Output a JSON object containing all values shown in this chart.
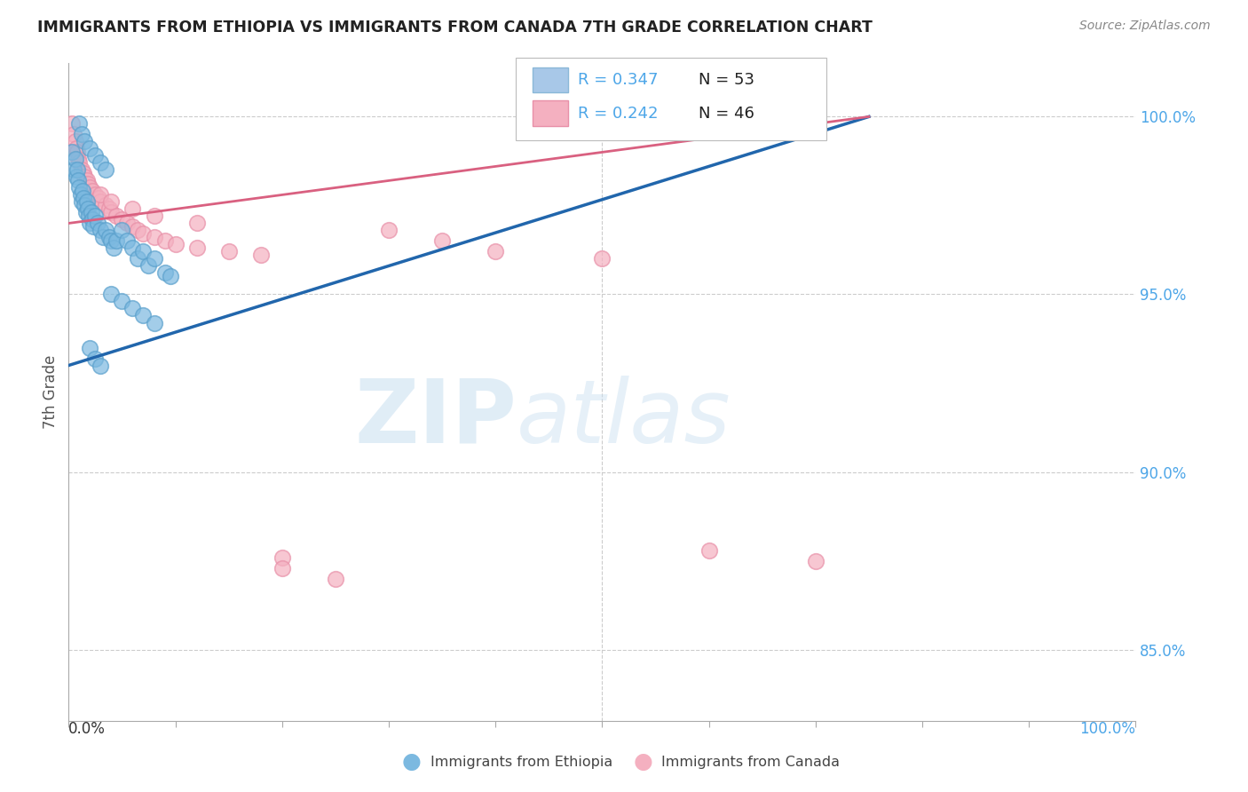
{
  "title": "IMMIGRANTS FROM ETHIOPIA VS IMMIGRANTS FROM CANADA 7TH GRADE CORRELATION CHART",
  "source": "Source: ZipAtlas.com",
  "ylabel": "7th Grade",
  "y_ticks": [
    0.85,
    0.9,
    0.95,
    1.0
  ],
  "y_tick_labels": [
    "85.0%",
    "90.0%",
    "95.0%",
    "100.0%"
  ],
  "x_range": [
    0.0,
    1.0
  ],
  "y_range": [
    0.83,
    1.015
  ],
  "watermark_zip": "ZIP",
  "watermark_atlas": "atlas",
  "series1_name": "Immigrants from Ethiopia",
  "series1_color": "#7cb9e0",
  "series1_edge_color": "#5aa0cc",
  "series1_line_color": "#2166ac",
  "series2_name": "Immigrants from Canada",
  "series2_color": "#f4b0c0",
  "series2_edge_color": "#e890a8",
  "series2_line_color": "#d96080",
  "scatter1_x": [
    0.003,
    0.005,
    0.006,
    0.007,
    0.008,
    0.009,
    0.01,
    0.011,
    0.012,
    0.013,
    0.014,
    0.015,
    0.016,
    0.017,
    0.018,
    0.019,
    0.02,
    0.021,
    0.022,
    0.023,
    0.025,
    0.027,
    0.03,
    0.032,
    0.035,
    0.038,
    0.04,
    0.042,
    0.045,
    0.05,
    0.055,
    0.06,
    0.065,
    0.07,
    0.075,
    0.08,
    0.09,
    0.095,
    0.01,
    0.012,
    0.015,
    0.02,
    0.025,
    0.03,
    0.035,
    0.04,
    0.05,
    0.06,
    0.07,
    0.08,
    0.02,
    0.025,
    0.03
  ],
  "scatter1_y": [
    0.99,
    0.985,
    0.988,
    0.983,
    0.985,
    0.982,
    0.98,
    0.978,
    0.976,
    0.979,
    0.977,
    0.975,
    0.973,
    0.976,
    0.974,
    0.972,
    0.97,
    0.973,
    0.971,
    0.969,
    0.972,
    0.97,
    0.968,
    0.966,
    0.968,
    0.966,
    0.965,
    0.963,
    0.965,
    0.968,
    0.965,
    0.963,
    0.96,
    0.962,
    0.958,
    0.96,
    0.956,
    0.955,
    0.998,
    0.995,
    0.993,
    0.991,
    0.989,
    0.987,
    0.985,
    0.95,
    0.948,
    0.946,
    0.944,
    0.942,
    0.935,
    0.932,
    0.93
  ],
  "scatter2_x": [
    0.003,
    0.005,
    0.006,
    0.007,
    0.008,
    0.009,
    0.01,
    0.012,
    0.014,
    0.015,
    0.017,
    0.018,
    0.02,
    0.022,
    0.025,
    0.028,
    0.03,
    0.035,
    0.038,
    0.04,
    0.045,
    0.05,
    0.055,
    0.06,
    0.065,
    0.07,
    0.08,
    0.09,
    0.1,
    0.12,
    0.15,
    0.18,
    0.03,
    0.04,
    0.06,
    0.08,
    0.12,
    0.2,
    0.2,
    0.25,
    0.3,
    0.35,
    0.4,
    0.5,
    0.6,
    0.7
  ],
  "scatter2_y": [
    0.998,
    0.995,
    0.993,
    0.991,
    0.99,
    0.988,
    0.987,
    0.985,
    0.984,
    0.983,
    0.982,
    0.981,
    0.98,
    0.979,
    0.978,
    0.977,
    0.976,
    0.975,
    0.974,
    0.973,
    0.972,
    0.971,
    0.97,
    0.969,
    0.968,
    0.967,
    0.966,
    0.965,
    0.964,
    0.963,
    0.962,
    0.961,
    0.978,
    0.976,
    0.974,
    0.972,
    0.97,
    0.876,
    0.873,
    0.87,
    0.968,
    0.965,
    0.962,
    0.96,
    0.878,
    0.875
  ],
  "line1_x_start": 0.0,
  "line1_x_end": 0.75,
  "line1_y_start": 0.93,
  "line1_y_end": 1.0,
  "line2_x_start": 0.0,
  "line2_x_end": 0.75,
  "line2_y_start": 0.97,
  "line2_y_end": 1.0,
  "grid_color": "#cccccc",
  "background_color": "#ffffff",
  "title_color": "#222222",
  "axis_label_color": "#555555",
  "tick_color": "#4da6e8",
  "legend_r1": "R = 0.347",
  "legend_n1": "N = 53",
  "legend_r2": "R = 0.242",
  "legend_n2": "N = 46",
  "legend_box_color1": "#a8c8e8",
  "legend_box_color2": "#f4b0c0"
}
